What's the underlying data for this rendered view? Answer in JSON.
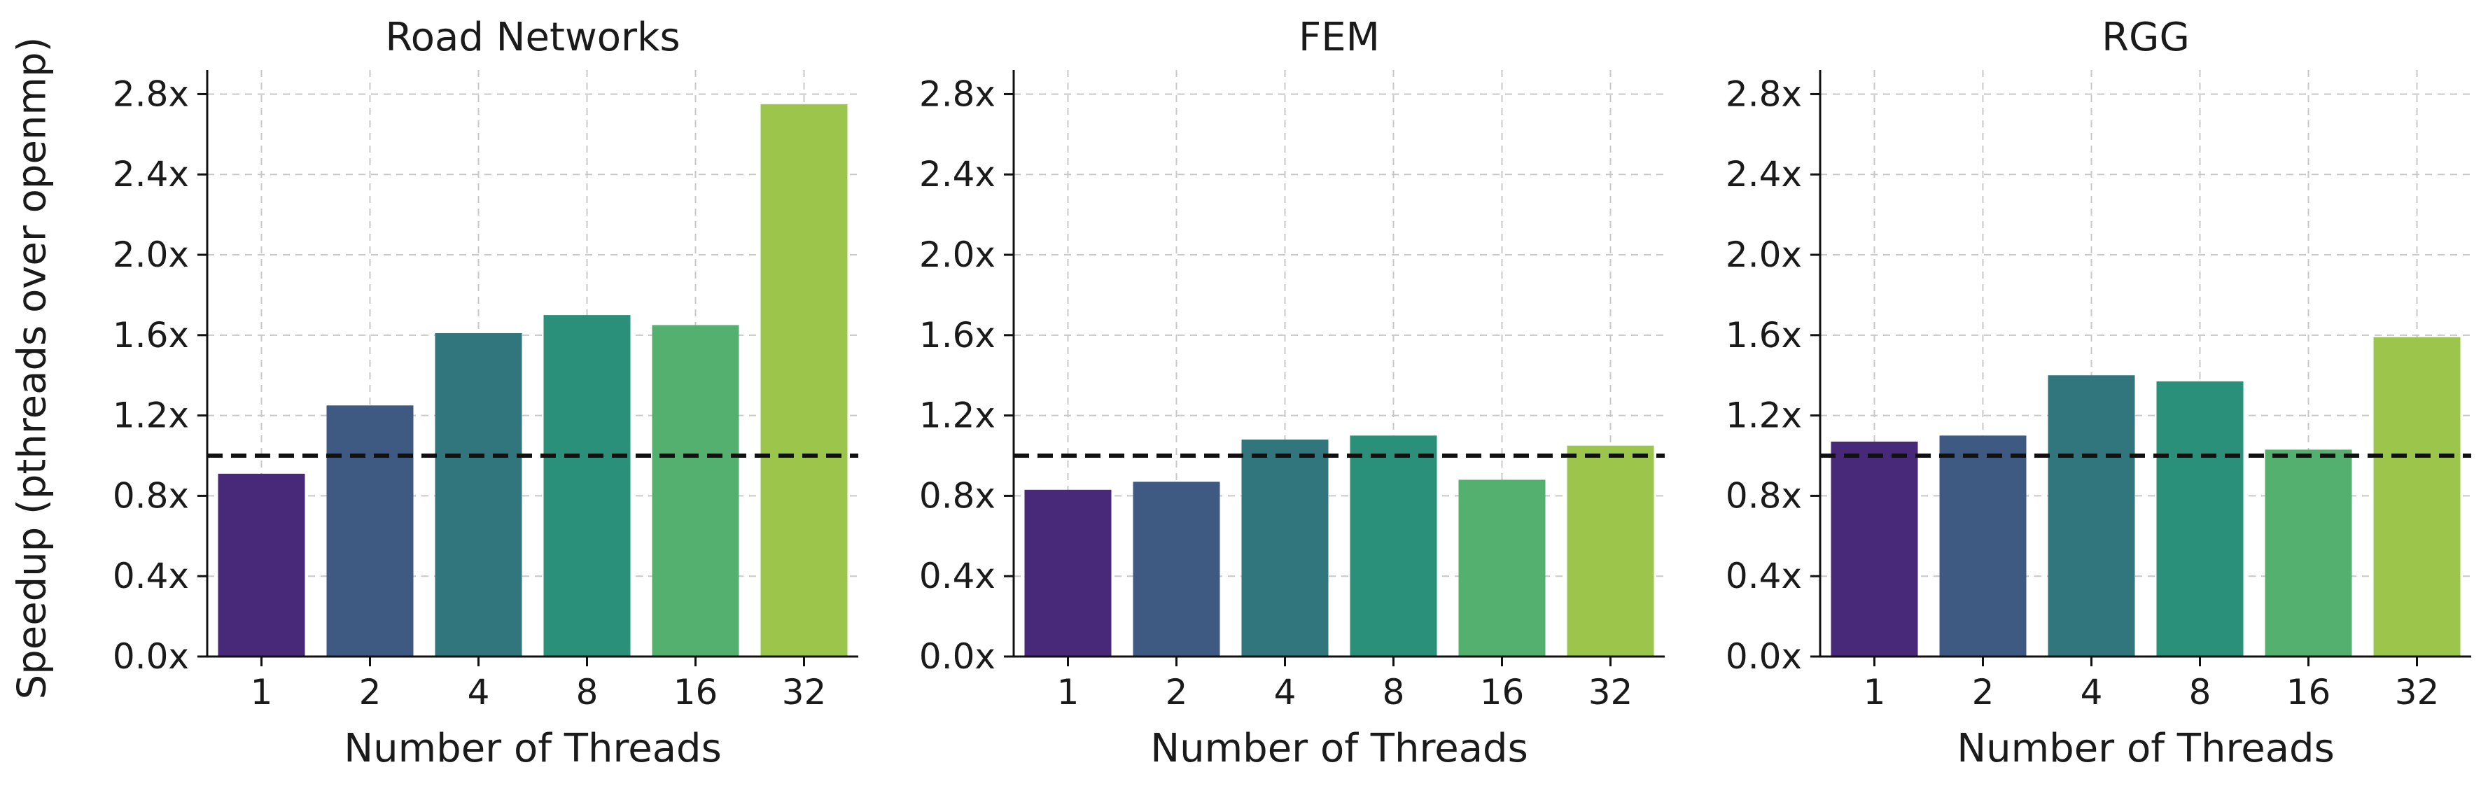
{
  "ylabel": "Speedup (pthreads over openmp)",
  "colors": [
    "#482878",
    "#3e5a83",
    "#31767d",
    "#2a9079",
    "#54b06e",
    "#9bc54b"
  ],
  "baseline": 1.0,
  "chart_data": [
    {
      "type": "bar",
      "title": "Road Networks",
      "xlabel": "Number of Threads",
      "categories": [
        "1",
        "2",
        "4",
        "8",
        "16",
        "32"
      ],
      "values": [
        0.91,
        1.25,
        1.61,
        1.7,
        1.65,
        2.75
      ],
      "ylim": [
        0,
        2.92
      ],
      "yticks": [
        "0.0x",
        "0.4x",
        "0.8x",
        "1.2x",
        "1.6x",
        "2.0x",
        "2.4x",
        "2.8x"
      ],
      "grid": true
    },
    {
      "type": "bar",
      "title": "FEM",
      "xlabel": "Number of Threads",
      "categories": [
        "1",
        "2",
        "4",
        "8",
        "16",
        "32"
      ],
      "values": [
        0.83,
        0.87,
        1.08,
        1.1,
        0.88,
        1.05
      ],
      "ylim": [
        0,
        2.92
      ],
      "yticks": [
        "0.0x",
        "0.4x",
        "0.8x",
        "1.2x",
        "1.6x",
        "2.0x",
        "2.4x",
        "2.8x"
      ],
      "grid": true
    },
    {
      "type": "bar",
      "title": "RGG",
      "xlabel": "Number of Threads",
      "categories": [
        "1",
        "2",
        "4",
        "8",
        "16",
        "32"
      ],
      "values": [
        1.07,
        1.1,
        1.4,
        1.37,
        1.03,
        1.59
      ],
      "ylim": [
        0,
        2.92
      ],
      "yticks": [
        "0.0x",
        "0.4x",
        "0.8x",
        "1.2x",
        "1.6x",
        "2.0x",
        "2.4x",
        "2.8x"
      ],
      "grid": true
    }
  ]
}
